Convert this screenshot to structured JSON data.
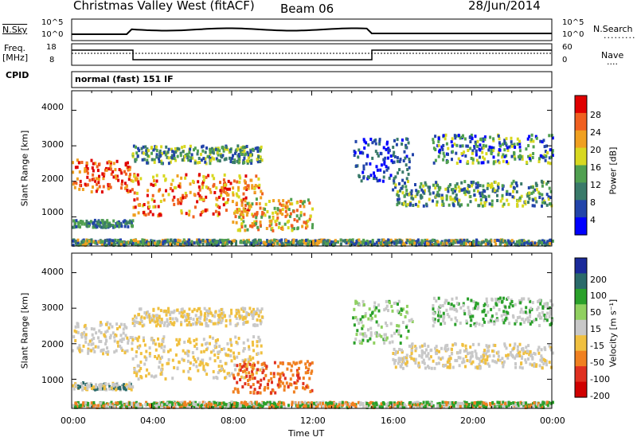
{
  "header": {
    "title": "Christmas Valley West (fitACF)",
    "beam": "Beam 06",
    "date": "28/Jun/2014"
  },
  "top_panels": {
    "nsky_label": "N.Sky",
    "nsearch_label": "N.Search",
    "nsky_ticks": [
      "10^5",
      "10^0"
    ],
    "nsearch_ticks": [
      "10^5",
      "10^0"
    ],
    "freq_label": "Freq.",
    "freq_unit": "[MHz]",
    "freq_ticks": [
      "18",
      "8"
    ],
    "nave_label": "Nave",
    "nave_ticks": [
      "60",
      "0"
    ],
    "cpid_label": "CPID",
    "cpid_text": "normal (fast) 151 IF"
  },
  "chart_data": [
    {
      "type": "heatmap",
      "name": "power",
      "ylabel": "Slant Range [km]",
      "xlabel": "Time UT",
      "xticks": [
        "00:00",
        "04:00",
        "08:00",
        "12:00",
        "16:00",
        "20:00",
        "00:00"
      ],
      "yticks": [
        "1000",
        "2000",
        "3000",
        "4000"
      ],
      "xlim": [
        0,
        24
      ],
      "ylim": [
        180,
        4550
      ],
      "colorbar_label": "Power [dB]",
      "colorbar_ticks": [
        "4",
        "8",
        "12",
        "16",
        "20",
        "24",
        "28"
      ],
      "colors": [
        "#0000ff",
        "#2244aa",
        "#3a7a6a",
        "#50a050",
        "#d8d820",
        "#f0a020",
        "#f06020",
        "#e00000"
      ],
      "grid": false
    },
    {
      "type": "heatmap",
      "name": "velocity",
      "ylabel": "Slant Range [km]",
      "xlabel": "Time UT",
      "xticks": [
        "00:00",
        "04:00",
        "08:00",
        "12:00",
        "16:00",
        "20:00",
        "00:00"
      ],
      "yticks": [
        "1000",
        "2000",
        "3000",
        "4000"
      ],
      "xlim": [
        0,
        24
      ],
      "ylim": [
        180,
        4550
      ],
      "colorbar_label": "Velocity [m s⁻¹]",
      "colorbar_ticks": [
        "200",
        "100",
        "50",
        "15",
        "-15",
        "-50",
        "-100",
        "-200"
      ],
      "colors": [
        "#1a2a9a",
        "#2a6a6a",
        "#2aa02a",
        "#90d060",
        "#c8c8c8",
        "#f0c040",
        "#f08020",
        "#e03020",
        "#d00000"
      ],
      "grid": false
    }
  ]
}
